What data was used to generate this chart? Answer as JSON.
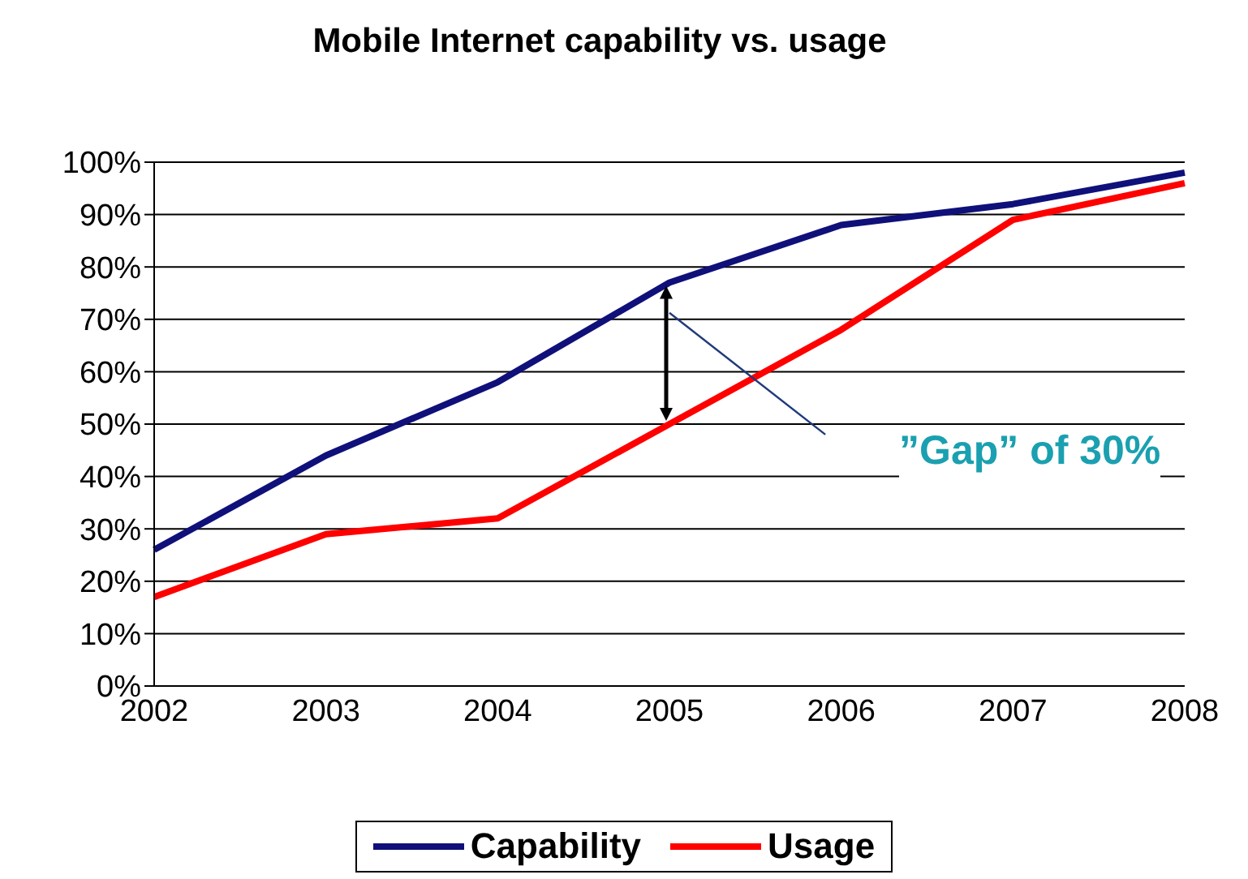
{
  "chart_data": {
    "type": "line",
    "title": "Mobile Internet capability vs. usage",
    "categories": [
      "2002",
      "2003",
      "2004",
      "2005",
      "2006",
      "2007",
      "2008"
    ],
    "series": [
      {
        "name": "Capability",
        "color": "#10107a",
        "values": [
          26,
          44,
          58,
          77,
          88,
          92,
          98
        ]
      },
      {
        "name": "Usage",
        "color": "#ff0000",
        "values": [
          17,
          29,
          32,
          50,
          68,
          89,
          96
        ]
      }
    ],
    "ylim": [
      0,
      100
    ],
    "yticks": [
      {
        "value": 0,
        "label": "0%"
      },
      {
        "value": 10,
        "label": "10%"
      },
      {
        "value": 20,
        "label": "20%"
      },
      {
        "value": 30,
        "label": "30%"
      },
      {
        "value": 40,
        "label": "40%"
      },
      {
        "value": 50,
        "label": "50%"
      },
      {
        "value": 60,
        "label": "60%"
      },
      {
        "value": 70,
        "label": "70%"
      },
      {
        "value": 80,
        "label": "80%"
      },
      {
        "value": 90,
        "label": "90%"
      },
      {
        "value": 100,
        "label": "100%"
      }
    ],
    "grid": "y",
    "legend": "bottom",
    "marker": "none",
    "line_style": "solid",
    "annotations": [
      "”Gap” of 30%"
    ]
  }
}
